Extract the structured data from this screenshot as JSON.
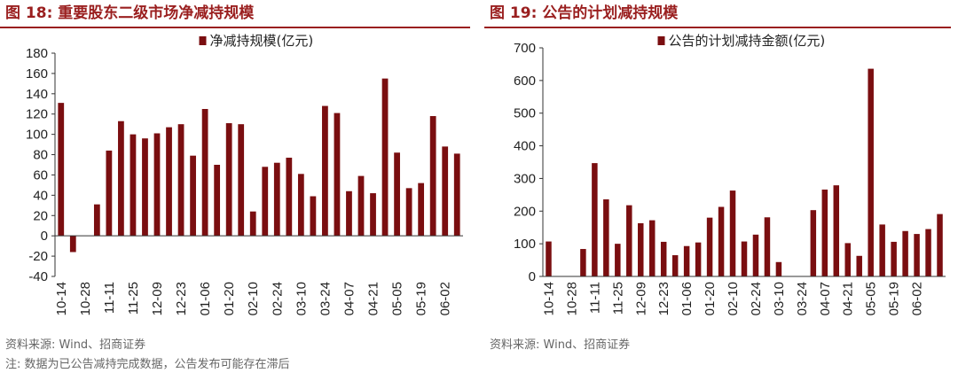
{
  "colors": {
    "bar": "#7a0e10",
    "title": "#9a1f1f",
    "axis": "#333333",
    "source": "#666666"
  },
  "charts": [
    {
      "title": "图 18:  重要股东二级市场净减持规模",
      "source": "资料来源:  Wind、招商证券",
      "note": "注:  数据为已公告减持完成数据，公告发布可能存在滞后"
    },
    {
      "title": "图 19:  公告的计划减持规模",
      "source": "资料来源:  Wind、招商证券",
      "note": ""
    }
  ],
  "chart_data": [
    {
      "type": "bar",
      "title": "",
      "legend_position": "top-center",
      "series": [
        {
          "name": "净减持规模(亿元)",
          "values": [
            131,
            -16,
            0,
            31,
            84,
            113,
            100,
            96,
            101,
            107,
            110,
            79,
            125,
            70,
            111,
            110,
            24,
            68,
            72,
            77,
            61,
            39,
            128,
            121,
            44,
            59,
            42,
            155,
            82,
            47,
            52,
            118,
            88,
            81
          ]
        }
      ],
      "x_tick_labels": [
        "10-14",
        "10-28",
        "11-11",
        "11-25",
        "12-09",
        "12-23",
        "01-06",
        "01-20",
        "02-10",
        "02-24",
        "03-10",
        "03-24",
        "04-07",
        "04-21",
        "05-05",
        "05-19",
        "06-02"
      ],
      "ylim": [
        -40,
        180
      ],
      "y_ticks": [
        -40,
        -20,
        0,
        20,
        40,
        60,
        80,
        100,
        120,
        140,
        160,
        180
      ],
      "grid": false
    },
    {
      "type": "bar",
      "title": "",
      "legend_position": "top-center",
      "series": [
        {
          "name": "公告的计划减持金额(亿元)",
          "values": [
            107,
            0,
            0,
            84,
            347,
            236,
            100,
            218,
            163,
            172,
            106,
            65,
            93,
            104,
            180,
            213,
            263,
            107,
            128,
            181,
            44,
            0,
            0,
            203,
            266,
            279,
            102,
            63,
            636,
            159,
            106,
            139,
            130,
            145,
            191
          ]
        }
      ],
      "x_tick_labels": [
        "10-14",
        "10-28",
        "11-11",
        "11-25",
        "12-09",
        "12-23",
        "01-06",
        "01-20",
        "02-10",
        "02-24",
        "03-10",
        "03-24",
        "04-07",
        "04-21",
        "05-05",
        "05-19",
        "06-02"
      ],
      "ylim": [
        0,
        700
      ],
      "y_ticks": [
        0,
        100,
        200,
        300,
        400,
        500,
        600,
        700
      ],
      "grid": false
    }
  ]
}
